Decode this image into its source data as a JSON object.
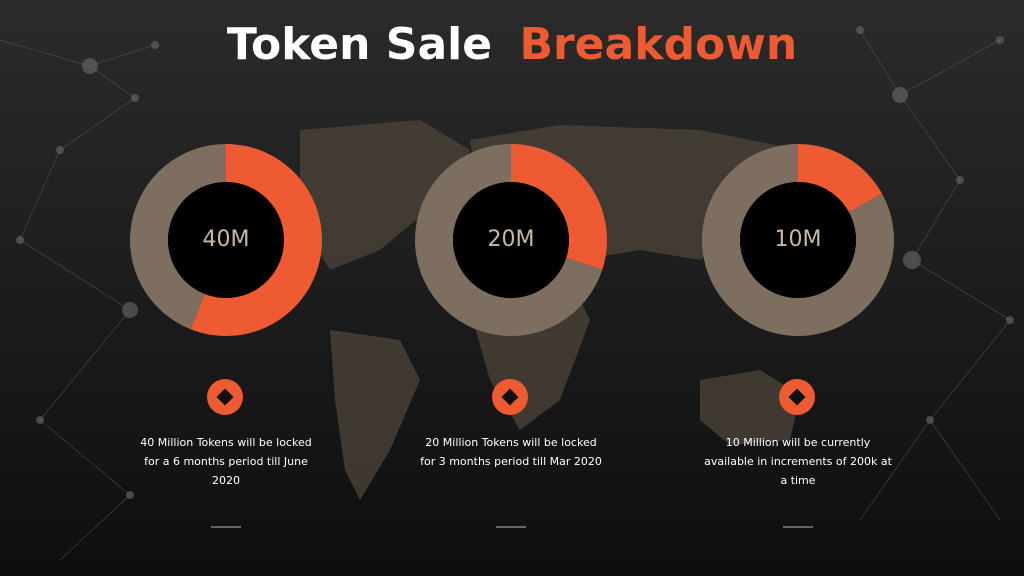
{
  "header": {
    "title_white": "Token Sale",
    "title_accent": "Breakdown"
  },
  "chart_data": [
    {
      "type": "donut",
      "center_label": "40M",
      "values": [
        56,
        44
      ],
      "colors": [
        "#ee5a32",
        "#7d6e60"
      ],
      "caption": [
        "40 Million Tokens will be locked",
        "for a 6 months  period till June",
        "2020"
      ]
    },
    {
      "type": "donut",
      "center_label": "20M",
      "values": [
        30,
        70
      ],
      "colors": [
        "#ee5a32",
        "#7d6e60"
      ],
      "caption": [
        "20 Million Tokens will be locked",
        "for 3 months period till Mar 2020"
      ]
    },
    {
      "type": "donut",
      "center_label": "10M",
      "values": [
        17,
        83
      ],
      "colors": [
        "#ee5a32",
        "#7d6e60"
      ],
      "caption": [
        "10 Million will be currently",
        "available in increments of 200k at",
        "a time"
      ]
    }
  ]
}
